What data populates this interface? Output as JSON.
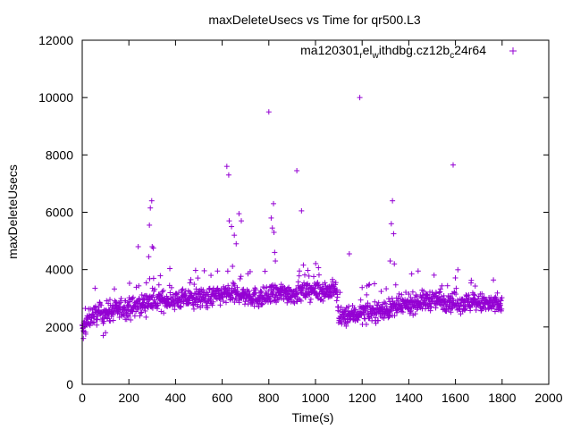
{
  "chart_data": {
    "type": "scatter",
    "title": "maxDeleteUsecs vs Time for qr500.L3",
    "xlabel": "Time(s)",
    "ylabel": "maxDeleteUsecs",
    "xlim": [
      0,
      2000
    ],
    "ylim": [
      0,
      12000
    ],
    "x_ticks": [
      0,
      200,
      400,
      600,
      800,
      1000,
      1200,
      1400,
      1600,
      1800,
      2000
    ],
    "y_ticks": [
      0,
      2000,
      4000,
      6000,
      8000,
      10000,
      12000
    ],
    "grid": false,
    "legend_position": "top-right",
    "marker": "plus",
    "series": [
      {
        "name": "ma120301_rel_withdbg.cz12b_c24r64",
        "name_parts": [
          "ma120301",
          "r",
          "el",
          "w",
          "ithdbg.cz12b",
          "c",
          "24r64"
        ],
        "color": "#9400d3",
        "trend_x": [
          0,
          40,
          100,
          160,
          220,
          300,
          400,
          500,
          560,
          620,
          700,
          760,
          820,
          860,
          900,
          960,
          1000,
          1060,
          1090,
          1100,
          1150,
          1200,
          1260,
          1300,
          1360,
          1420,
          1500,
          1560,
          1620,
          1680,
          1740,
          1800
        ],
        "trend_y": [
          1900,
          2400,
          2500,
          2600,
          2700,
          2900,
          2950,
          3000,
          3050,
          3150,
          3100,
          3000,
          3100,
          3200,
          3150,
          3250,
          3300,
          3250,
          3300,
          2300,
          2400,
          2500,
          2550,
          2600,
          2700,
          2850,
          2950,
          2900,
          2850,
          2850,
          2800,
          2750
        ],
        "noise": 320,
        "outliers": [
          {
            "x": 5,
            "y": 1600
          },
          {
            "x": 15,
            "y": 1750
          },
          {
            "x": 55,
            "y": 3350
          },
          {
            "x": 90,
            "y": 1700
          },
          {
            "x": 100,
            "y": 1800
          },
          {
            "x": 240,
            "y": 4800
          },
          {
            "x": 285,
            "y": 4450
          },
          {
            "x": 288,
            "y": 5550
          },
          {
            "x": 292,
            "y": 6150
          },
          {
            "x": 298,
            "y": 6400
          },
          {
            "x": 300,
            "y": 4800
          },
          {
            "x": 305,
            "y": 4750
          },
          {
            "x": 580,
            "y": 3950
          },
          {
            "x": 620,
            "y": 7600
          },
          {
            "x": 628,
            "y": 7300
          },
          {
            "x": 630,
            "y": 5700
          },
          {
            "x": 640,
            "y": 5500
          },
          {
            "x": 652,
            "y": 5200
          },
          {
            "x": 660,
            "y": 4900
          },
          {
            "x": 672,
            "y": 5950
          },
          {
            "x": 682,
            "y": 5700
          },
          {
            "x": 800,
            "y": 9500
          },
          {
            "x": 810,
            "y": 5800
          },
          {
            "x": 815,
            "y": 5450
          },
          {
            "x": 820,
            "y": 6300
          },
          {
            "x": 822,
            "y": 5300
          },
          {
            "x": 825,
            "y": 4600
          },
          {
            "x": 828,
            "y": 4300
          },
          {
            "x": 920,
            "y": 7450
          },
          {
            "x": 940,
            "y": 6050
          },
          {
            "x": 1145,
            "y": 4550
          },
          {
            "x": 1190,
            "y": 10000
          },
          {
            "x": 1320,
            "y": 4300
          },
          {
            "x": 1325,
            "y": 5600
          },
          {
            "x": 1330,
            "y": 6400
          },
          {
            "x": 1335,
            "y": 5250
          },
          {
            "x": 1338,
            "y": 4200
          },
          {
            "x": 1440,
            "y": 3950
          },
          {
            "x": 1590,
            "y": 7650
          }
        ]
      }
    ]
  }
}
